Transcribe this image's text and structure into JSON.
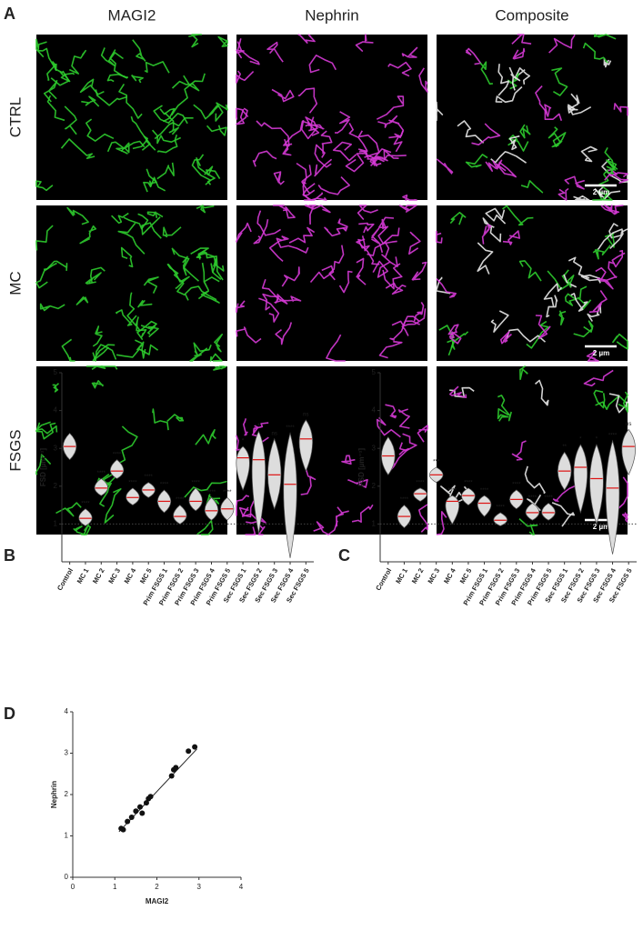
{
  "panel_a": {
    "label": "A",
    "columns": [
      "MAGI2",
      "Nephrin",
      "Composite"
    ],
    "rows": [
      "CTRL",
      "MC",
      "FSGS"
    ],
    "scale_bars": [
      "2 µm",
      "2 µm",
      "2 µm"
    ]
  },
  "chart_data": [
    {
      "type": "violin",
      "panel": "B",
      "ylabel": "FSD [µm⁻¹]",
      "categories": [
        "Control",
        "MC 1",
        "MC 2",
        "MC 3",
        "MC 4",
        "MC 5",
        "Prim FSGS 1",
        "Prim FSGS 2",
        "Prim FSGS 3",
        "Prim FSGS 4",
        "Prim FSGS 5",
        "Sec FSGS 1",
        "Sec FSGS 2",
        "Sec FSGS 3",
        "Sec FSGS 4",
        "Sec FSGS 5"
      ],
      "values": [
        3.05,
        1.15,
        1.95,
        2.4,
        1.7,
        1.9,
        1.6,
        1.2,
        1.6,
        1.35,
        1.4,
        2.75,
        2.7,
        2.3,
        2.05,
        3.25
      ],
      "lows": [
        2.7,
        0.95,
        1.75,
        2.2,
        1.5,
        1.7,
        1.3,
        1.0,
        1.35,
        1.1,
        1.1,
        1.9,
        0.75,
        1.4,
        0.1,
        2.4
      ],
      "highs": [
        3.4,
        1.4,
        2.2,
        2.7,
        1.95,
        2.1,
        1.9,
        1.5,
        1.95,
        1.7,
        1.7,
        3.05,
        3.45,
        3.25,
        3.4,
        3.75
      ],
      "significance": [
        null,
        "****",
        "****",
        "****",
        "****",
        "****",
        "****",
        "****",
        "****",
        "****",
        "****",
        "*",
        "*",
        "ns",
        "****",
        "ns"
      ],
      "reference_line": 1,
      "ylim": [
        0,
        5
      ],
      "yticks": [
        1,
        2,
        3,
        4,
        5
      ],
      "median_color": "#d11",
      "fill": "#ddd"
    },
    {
      "type": "violin",
      "panel": "C",
      "ylabel": "FSD [µm⁻¹]",
      "categories": [
        "Control",
        "MC 1",
        "MC 2",
        "MC 3",
        "MC 4",
        "MC 5",
        "Prim FSGS 1",
        "Prim FSGS 2",
        "Prim FSGS 3",
        "Prim FSGS 4",
        "Prim FSGS 5",
        "Sec FSGS 1",
        "Sec FSGS 2",
        "Sec FSGS 3",
        "Sec FSGS 4",
        "Sec FSGS 5"
      ],
      "values": [
        2.8,
        1.2,
        1.8,
        2.3,
        1.6,
        1.75,
        1.55,
        1.1,
        1.65,
        1.3,
        1.3,
        2.4,
        2.5,
        2.2,
        1.95,
        3.05
      ],
      "lows": [
        2.3,
        0.9,
        1.6,
        2.1,
        1.0,
        1.5,
        1.2,
        0.95,
        1.4,
        1.1,
        1.1,
        1.9,
        1.3,
        1.0,
        0.2,
        2.3
      ],
      "highs": [
        3.3,
        1.5,
        1.95,
        2.5,
        1.75,
        1.95,
        1.75,
        1.3,
        1.9,
        1.55,
        1.55,
        2.9,
        3.1,
        3.1,
        3.2,
        3.5
      ],
      "significance": [
        null,
        "****",
        "****",
        "***",
        "****",
        "****",
        "****",
        "****",
        "****",
        "****",
        "****",
        "**",
        "*",
        "*",
        "****",
        "ns"
      ],
      "reference_line": 1,
      "ylim": [
        0,
        5
      ],
      "yticks": [
        1,
        2,
        3,
        4,
        5
      ],
      "median_color": "#d11",
      "fill": "#ddd"
    },
    {
      "type": "scatter",
      "panel": "D",
      "xlabel": "MAGI2",
      "ylabel": "Nephrin",
      "x": [
        1.15,
        1.2,
        1.3,
        1.4,
        1.5,
        1.6,
        1.65,
        1.75,
        1.8,
        1.85,
        2.35,
        2.4,
        2.45,
        2.75,
        2.9
      ],
      "y": [
        1.18,
        1.15,
        1.35,
        1.45,
        1.6,
        1.7,
        1.55,
        1.8,
        1.9,
        1.95,
        2.45,
        2.6,
        2.65,
        3.05,
        3.15
      ],
      "fit_x": [
        1.1,
        2.95
      ],
      "fit_y": [
        1.1,
        3.1
      ],
      "xlim": [
        0,
        4
      ],
      "ylim": [
        0,
        4
      ],
      "xticks": [
        0,
        1,
        2,
        3,
        4
      ],
      "yticks": [
        0,
        1,
        2,
        3,
        4
      ],
      "color": "#111"
    }
  ]
}
